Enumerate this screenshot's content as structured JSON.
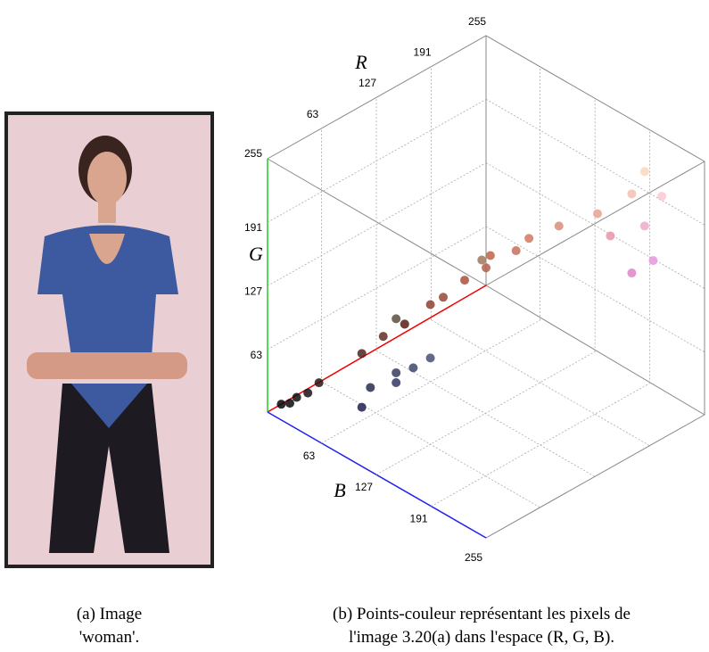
{
  "panel_a": {
    "caption": [
      "(a) Image",
      "'woman'."
    ]
  },
  "panel_b": {
    "caption": [
      "(b) Points-couleur représentant les pixels de",
      "l'image 3.20(a) dans l'espace (R, G, B)."
    ],
    "axes": {
      "R": {
        "label": "R",
        "ticks": [
          63,
          127,
          191,
          255
        ]
      },
      "G": {
        "label": "G",
        "ticks": [
          63,
          127,
          191,
          255
        ]
      },
      "B": {
        "label": "B",
        "ticks": [
          63,
          127,
          191,
          255
        ]
      }
    },
    "points": [
      [
        8,
        8,
        8
      ],
      [
        12,
        10,
        14
      ],
      [
        18,
        14,
        16
      ],
      [
        25,
        18,
        22
      ],
      [
        40,
        20,
        20
      ],
      [
        30,
        30,
        80
      ],
      [
        40,
        45,
        80
      ],
      [
        50,
        55,
        100
      ],
      [
        60,
        70,
        110
      ],
      [
        55,
        60,
        95
      ],
      [
        70,
        80,
        120
      ],
      [
        80,
        35,
        30
      ],
      [
        100,
        45,
        35
      ],
      [
        120,
        50,
        40
      ],
      [
        110,
        60,
        50
      ],
      [
        140,
        65,
        50
      ],
      [
        150,
        70,
        55
      ],
      [
        170,
        80,
        60
      ],
      [
        180,
        95,
        75
      ],
      [
        200,
        110,
        90
      ],
      [
        210,
        120,
        95
      ],
      [
        190,
        100,
        70
      ],
      [
        220,
        140,
        120
      ],
      [
        230,
        150,
        170
      ],
      [
        240,
        170,
        200
      ],
      [
        250,
        200,
        210
      ],
      [
        245,
        190,
        180
      ],
      [
        235,
        160,
        150
      ],
      [
        230,
        150,
        220
      ],
      [
        225,
        130,
        200
      ],
      [
        250,
        215,
        190
      ],
      [
        160,
        120,
        90
      ],
      [
        90,
        80,
        60
      ]
    ]
  }
}
